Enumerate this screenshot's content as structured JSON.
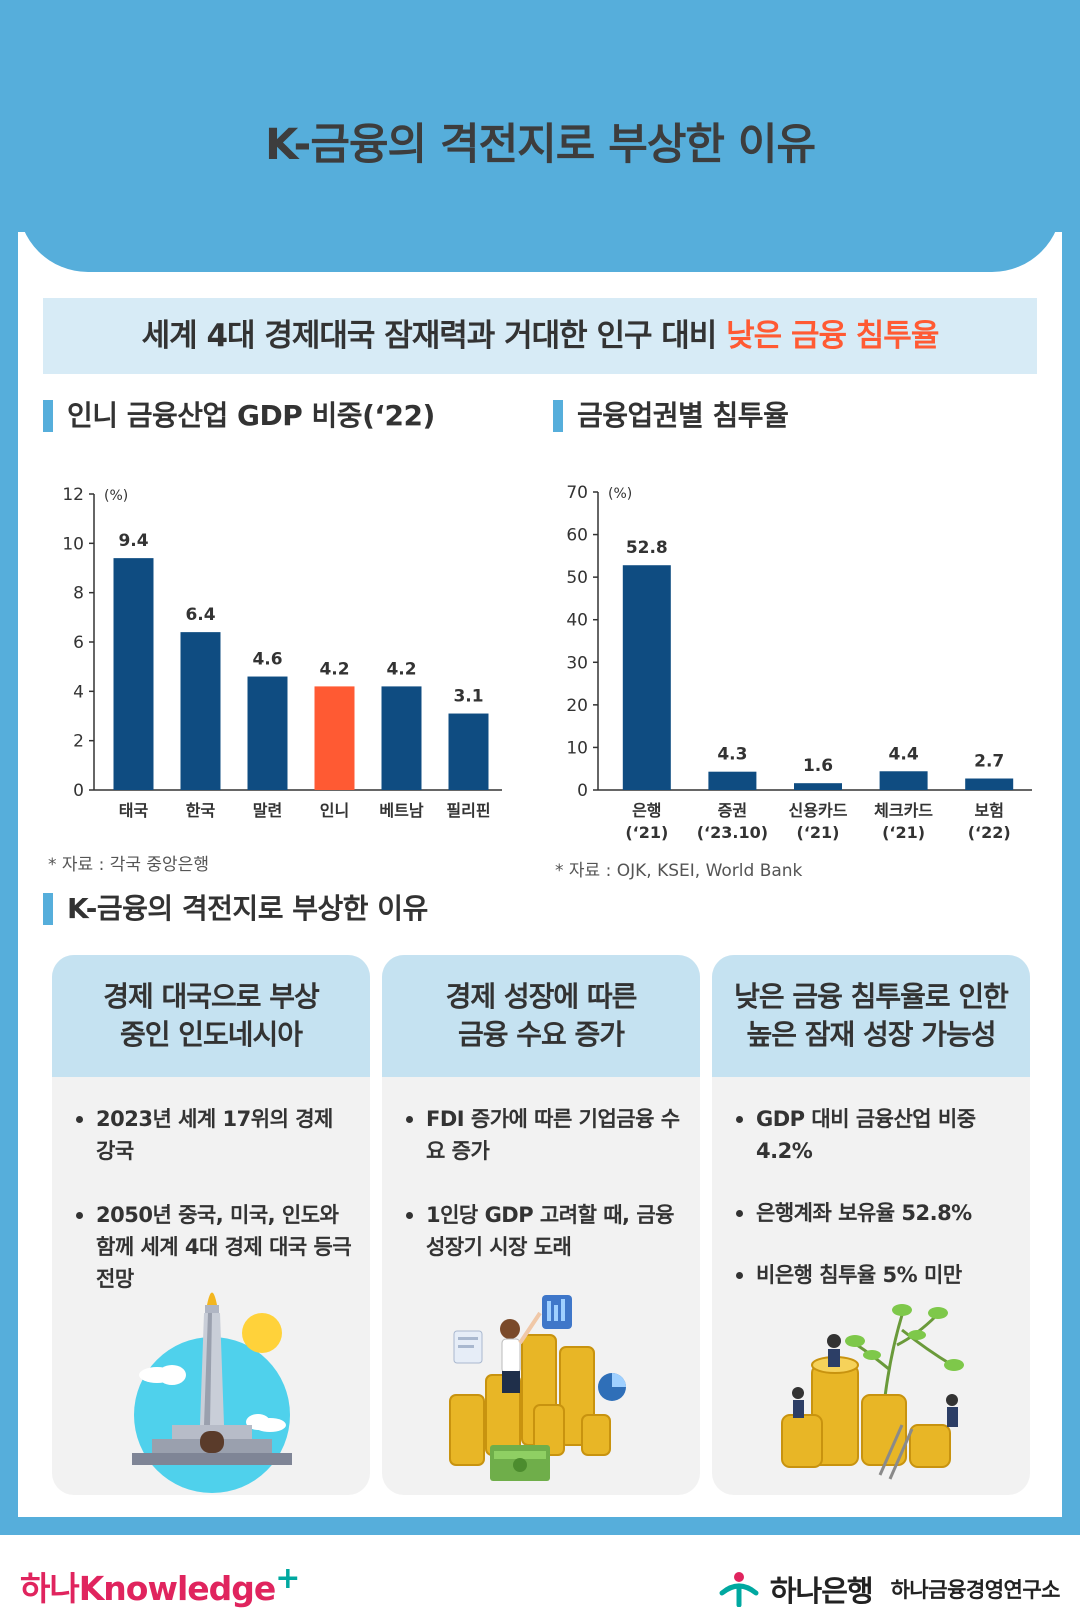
{
  "header": {
    "title": "K-금융의 격전지로 부상한 이유"
  },
  "banner": {
    "text_main": "세계 4대 경제대국 잠재력과 거대한 인구 대비 ",
    "text_highlight": "낮은 금융 침투율"
  },
  "section_gdp": {
    "title": "인니 금융산업 GDP 비중(‘22)",
    "source": "* 자료 : 각국 중앙은행"
  },
  "section_penetration": {
    "title": "금융업권별 침투율",
    "source": "* 자료 : OJK, KSEI, World Bank"
  },
  "section_reasons": {
    "title": "K-금융의 격전지로 부상한 이유"
  },
  "chart_data": [
    {
      "type": "bar",
      "title": "인니 금융산업 GDP 비중(‘22)",
      "ylabel": "(%)",
      "ylim": [
        0,
        12
      ],
      "yticks": [
        0,
        2,
        4,
        6,
        8,
        10,
        12
      ],
      "categories": [
        "태국",
        "한국",
        "말련",
        "인니",
        "베트남",
        "필리핀"
      ],
      "values": [
        9.4,
        6.4,
        4.6,
        4.2,
        4.2,
        3.1
      ],
      "value_labels": [
        "9.4",
        "6.4",
        "4.6",
        "4.2",
        "4.2",
        "3.1"
      ],
      "colors": [
        "#0f4c81",
        "#0f4c81",
        "#0f4c81",
        "#ff5a33",
        "#0f4c81",
        "#0f4c81"
      ],
      "grid": false
    },
    {
      "type": "bar",
      "title": "금융업권별 침투율",
      "ylabel": "(%)",
      "ylim": [
        0,
        70
      ],
      "yticks": [
        0,
        10,
        20,
        30,
        40,
        50,
        60,
        70
      ],
      "categories": [
        "은행\n(‘21)",
        "증권\n(‘23.10)",
        "신용카드\n(‘21)",
        "체크카드\n(‘21)",
        "보험\n(‘22)"
      ],
      "values": [
        52.8,
        4.3,
        1.6,
        4.4,
        2.7
      ],
      "value_labels": [
        "52.8",
        "4.3",
        "1.6",
        "4.4",
        "2.7"
      ],
      "colors": [
        "#0f4c81",
        "#0f4c81",
        "#0f4c81",
        "#0f4c81",
        "#0f4c81"
      ],
      "grid": false
    }
  ],
  "cards": [
    {
      "title_lines": [
        "경제 대국으로 부상",
        "중인 인도네시아"
      ],
      "bullets": [
        "2023년 세계 17위의 경제 강국",
        "2050년 중국, 미국, 인도와 함께 세계 4대 경제 대국 등극 전망"
      ],
      "illustration": "monument-illustration"
    },
    {
      "title_lines": [
        "경제 성장에 따른",
        "금융 수요 증가"
      ],
      "bullets": [
        "FDI 증가에 따른 기업금융 수요 증가",
        "1인당 GDP 고려할 때, 금융 성장기 시장 도래"
      ],
      "illustration": "coins-businesswoman-illustration"
    },
    {
      "title_lines": [
        "낮은 금융 침투율로 인한",
        "높은 잠재 성장 가능성"
      ],
      "bullets": [
        "GDP 대비 금융산업 비중 4.2%",
        "은행계좌 보유율 52.8%",
        "비은행 침투율 5% 미만"
      ],
      "illustration": "coins-tree-illustration"
    }
  ],
  "footer": {
    "left_brand": "하나Knowledge",
    "left_plus": "+",
    "bank": "하나은행",
    "institute": "하나금융경영연구소"
  }
}
